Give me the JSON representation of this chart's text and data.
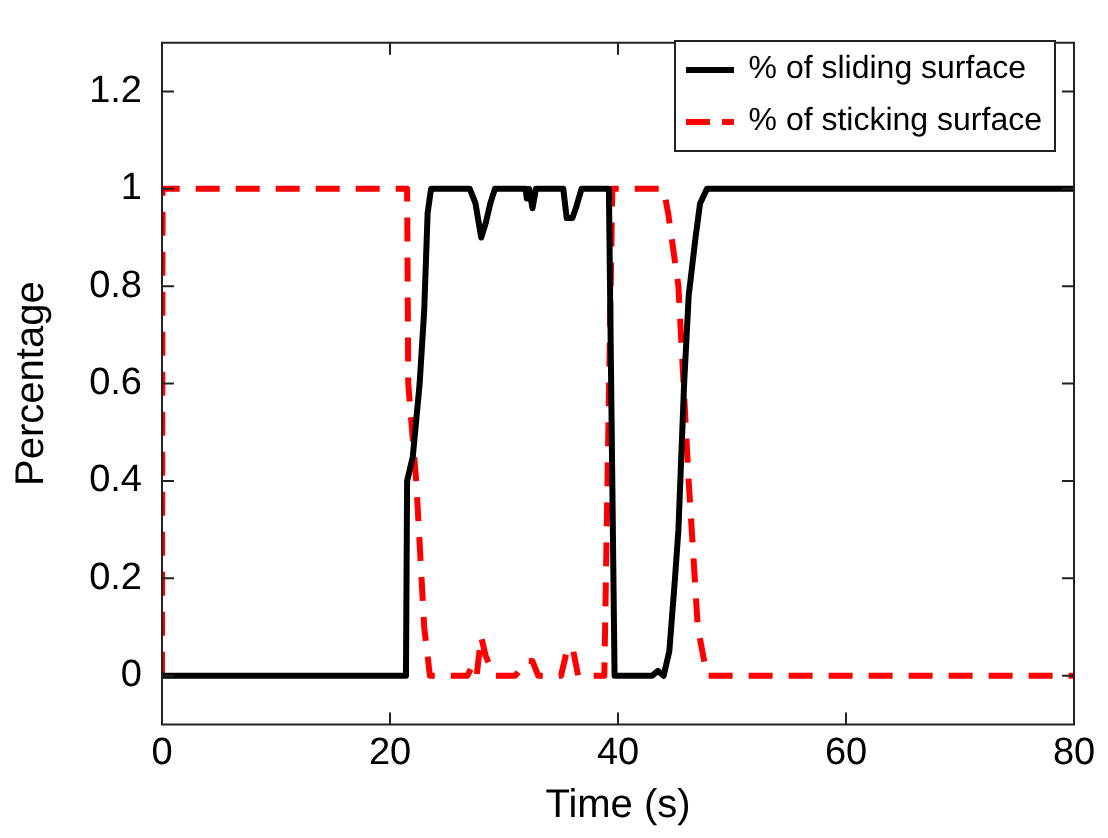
{
  "chart_data": {
    "type": "line",
    "xlabel": "Time (s)",
    "ylabel": "Percentage",
    "xlim": [
      0,
      80
    ],
    "xticks": [
      0,
      20,
      40,
      60,
      80
    ],
    "ylim": [
      -0.1,
      1.3
    ],
    "yticks": [
      0,
      0.2,
      0.4,
      0.6,
      0.8,
      1,
      1.2
    ],
    "grid": false,
    "legend": "top right",
    "marker": "none",
    "series": [
      {
        "name": "% of sliding surface",
        "color": "#000000",
        "line_style": "solid",
        "x": [
          0,
          21.4,
          21.5,
          22.0,
          22.6,
          23.0,
          23.3,
          23.6,
          27,
          27.5,
          28.0,
          28.4,
          28.8,
          29.2,
          31.9,
          32,
          32.2,
          32.5,
          32.8,
          35.2,
          35.5,
          36,
          36.3,
          36.8,
          39.2,
          39.7,
          43,
          43.5,
          44,
          44.5,
          45,
          45.3,
          45.8,
          46.2,
          46.8,
          47.2,
          47.8,
          80
        ],
        "values": [
          0,
          0,
          0.4,
          0.45,
          0.6,
          0.75,
          0.95,
          1,
          1,
          0.97,
          0.9,
          0.93,
          0.97,
          1,
          1,
          0.98,
          1,
          0.96,
          1,
          1,
          0.94,
          0.94,
          0.96,
          1,
          1,
          0,
          0,
          0.01,
          0,
          0.05,
          0.2,
          0.3,
          0.6,
          0.78,
          0.9,
          0.97,
          1,
          1
        ]
      },
      {
        "name": "% of sticking surface",
        "color": "#ff0000",
        "line_style": "dashed",
        "x": [
          0,
          0.05,
          21.5,
          21.6,
          22.3,
          23.0,
          23.5,
          26.8,
          27.2,
          27.6,
          28,
          28.4,
          28.8,
          29.2,
          31,
          32,
          32.5,
          33,
          35,
          35.5,
          36,
          36.5,
          38.8,
          39.5,
          44,
          44.4,
          45.3,
          46.2,
          47,
          47.8,
          80
        ],
        "values": [
          0,
          1,
          1,
          0.6,
          0.4,
          0.1,
          0,
          0,
          0.02,
          0,
          0.08,
          0.04,
          0.02,
          0,
          0,
          0.03,
          0.03,
          0,
          0,
          0.05,
          0.06,
          0,
          0,
          1,
          1,
          0.95,
          0.8,
          0.4,
          0.1,
          0,
          0
        ]
      }
    ]
  }
}
